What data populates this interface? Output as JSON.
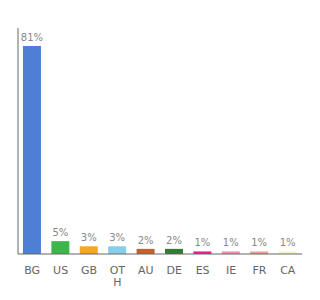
{
  "chart_data": {
    "type": "bar",
    "categories": [
      "BG",
      "US",
      "GB",
      "OT\nH",
      "AU",
      "DE",
      "ES",
      "IE",
      "FR",
      "CA"
    ],
    "values": [
      81,
      5,
      3,
      3,
      2,
      2,
      1,
      1,
      1,
      1
    ],
    "value_labels": [
      "81%",
      "5%",
      "3%",
      "3%",
      "2%",
      "2%",
      "1%",
      "1%",
      "1%",
      "1%"
    ],
    "colors": [
      "#4d7fd4",
      "#3cb54a",
      "#f5a623",
      "#87ceeb",
      "#c0622a",
      "#2e7d32",
      "#e91e8c",
      "#f48fb1",
      "#e8a090",
      "#f5f5c0"
    ],
    "ylim": [
      0,
      88
    ],
    "data_labels": true,
    "tick_labels": "x"
  }
}
